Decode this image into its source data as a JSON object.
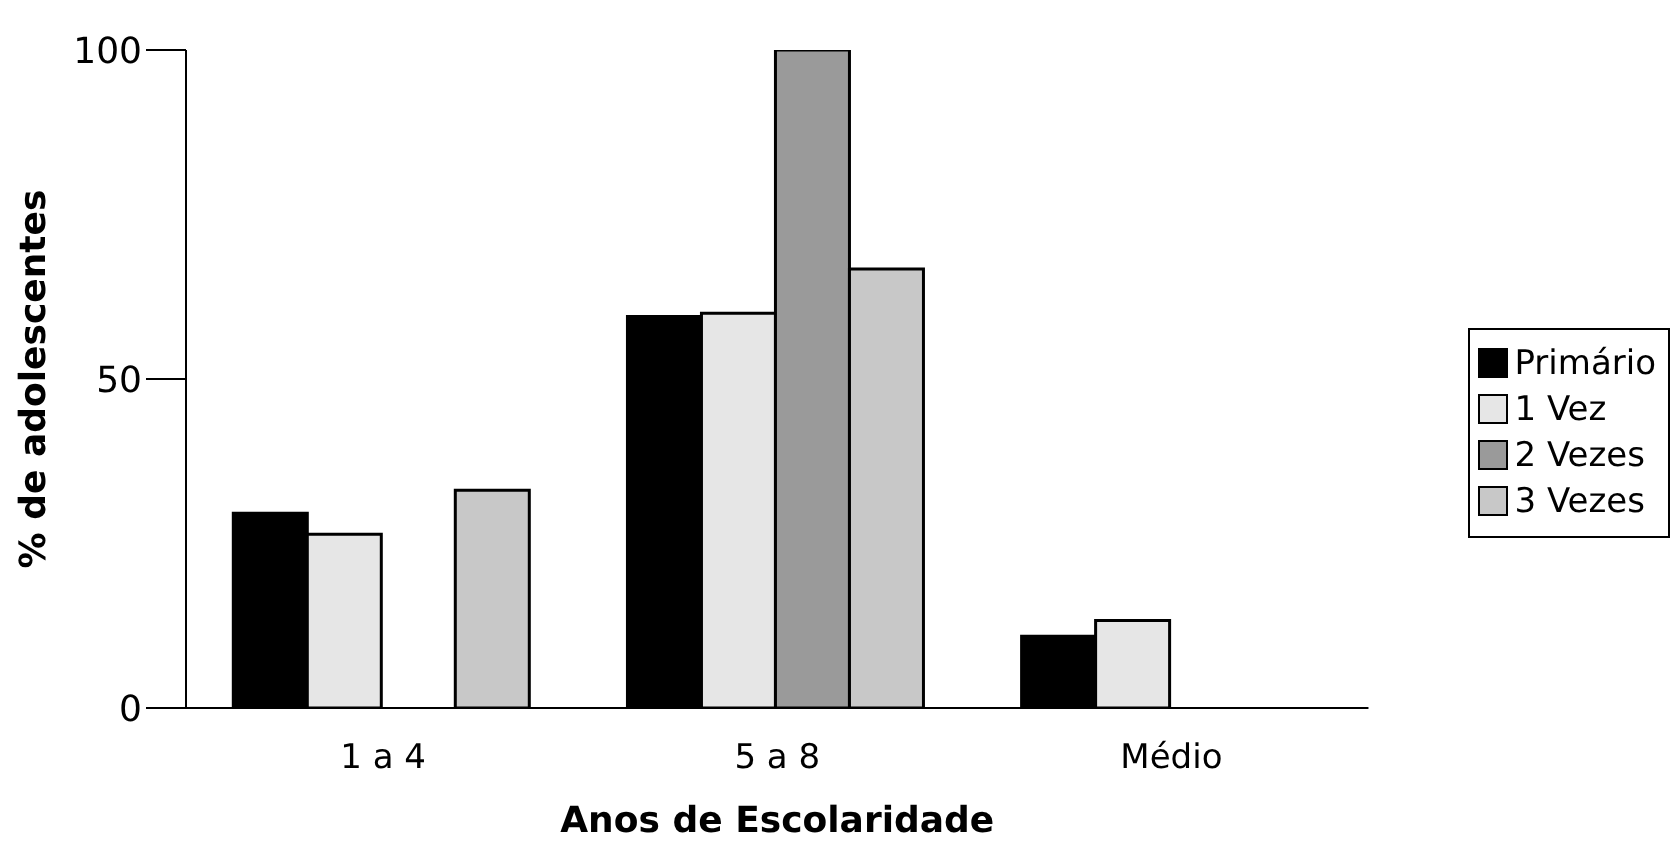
{
  "chart_data": {
    "type": "bar",
    "xlabel": "Anos de Escolaridade",
    "ylabel": "% de adolescentes",
    "categories": [
      "1 a 4",
      "5 a 8",
      "Médio"
    ],
    "series": [
      {
        "name": "Primário",
        "color": "#000000",
        "values": [
          29.6,
          59.5,
          10.9
        ]
      },
      {
        "name": "1 Vez",
        "color": "#e6e6e6",
        "values": [
          26.4,
          60,
          13.3
        ]
      },
      {
        "name": "2 Vezes",
        "color": "#9a9a9a",
        "values": [
          0,
          100,
          0
        ]
      },
      {
        "name": "3 Vezes",
        "color": "#c8c8c8",
        "values": [
          33.1,
          66.7,
          0
        ]
      }
    ],
    "ylim": [
      0,
      100
    ],
    "yticks": [
      0,
      50,
      100
    ],
    "grid": false,
    "legend": "right"
  }
}
